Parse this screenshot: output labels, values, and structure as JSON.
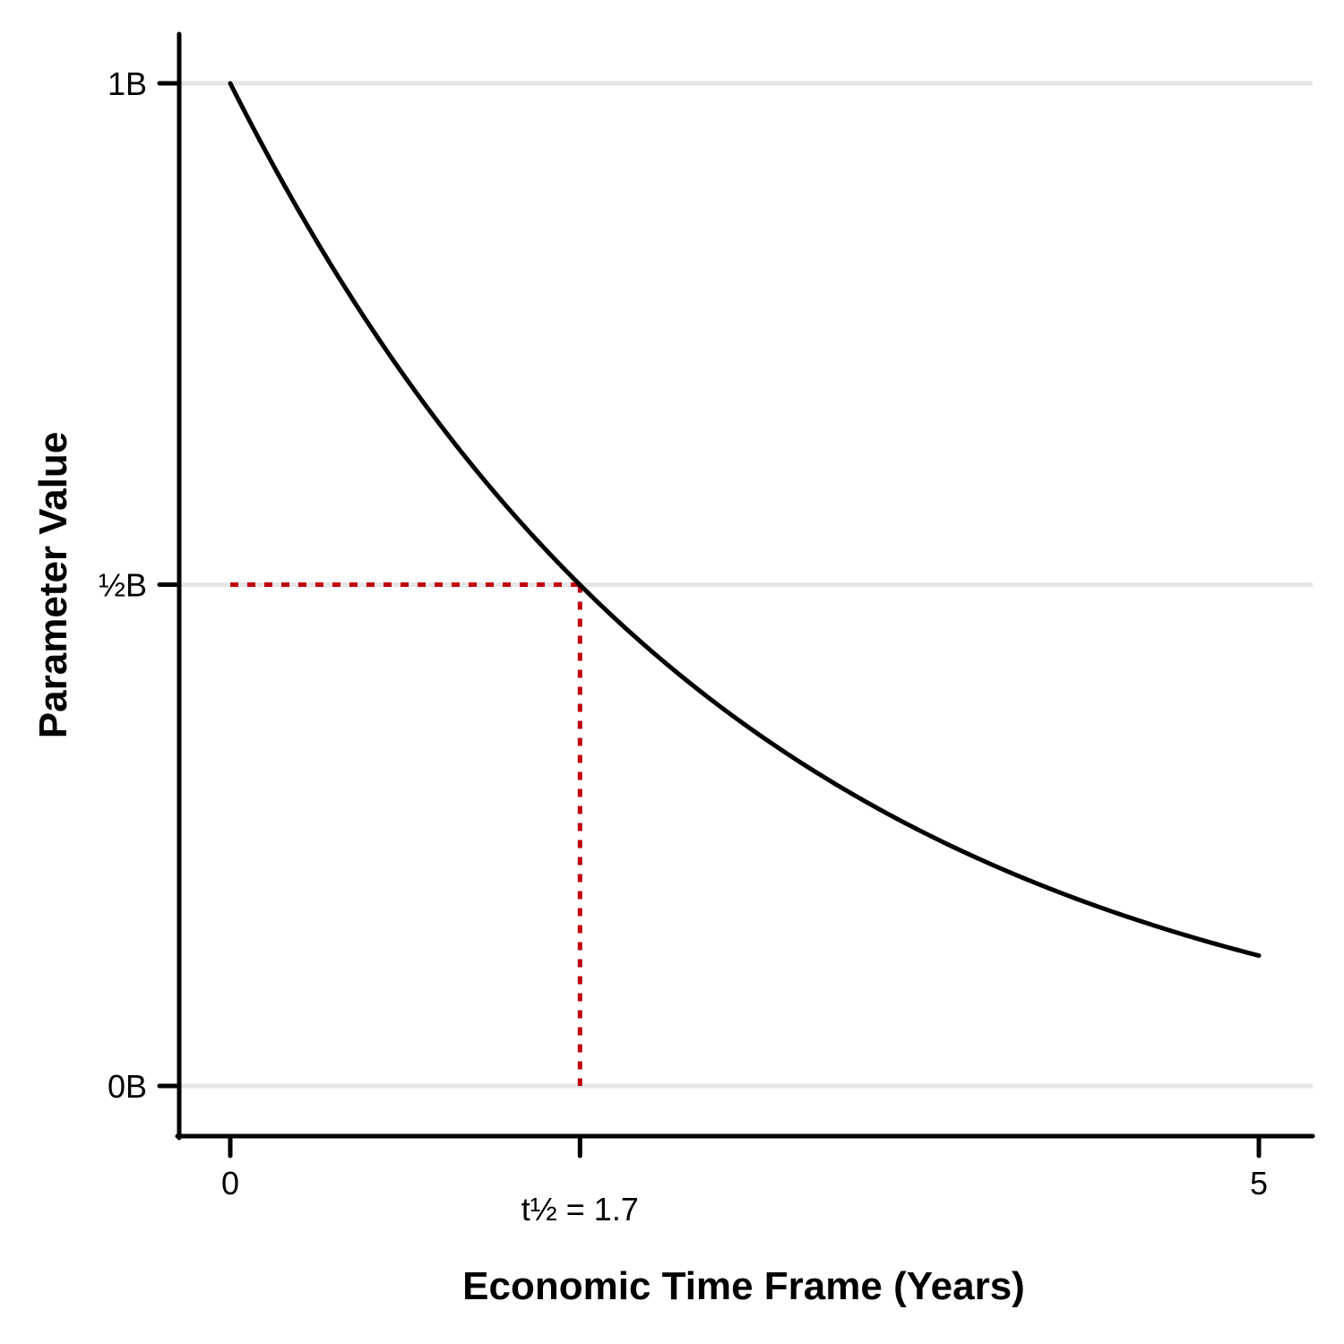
{
  "chart_data": {
    "type": "line",
    "title": "",
    "xlabel": "Economic Time Frame (Years)",
    "ylabel": "Parameter Value",
    "xlim": [
      -0.25,
      5.25
    ],
    "ylim": [
      -0.1,
      1.1
    ],
    "x_ticks": [
      {
        "value": 0,
        "label": "0"
      },
      {
        "value": 1.7,
        "label": "t½ = 1.7"
      },
      {
        "value": 5,
        "label": "5"
      }
    ],
    "y_ticks": [
      {
        "value": 0,
        "label": "0B"
      },
      {
        "value": 0.5,
        "label": "½B"
      },
      {
        "value": 1,
        "label": "1B"
      }
    ],
    "grid": "horizontal",
    "series": [
      {
        "x": [
          0,
          0.25,
          0.5,
          0.75,
          1,
          1.25,
          1.5,
          1.75,
          2,
          2.25,
          2.5,
          2.75,
          3,
          3.25,
          3.5,
          3.75,
          4,
          4.25,
          4.5,
          4.75,
          5
        ],
        "y": [
          1,
          0.903,
          0.816,
          0.736,
          0.665,
          0.601,
          0.542,
          0.49,
          0.442,
          0.4,
          0.361,
          0.326,
          0.294,
          0.266,
          0.24,
          0.217,
          0.196,
          0.177,
          0.16,
          0.144,
          0.13
        ],
        "color": "#000000"
      }
    ],
    "annotations": [
      {
        "type": "half-life-guide",
        "x": 1.7,
        "y": 0.5,
        "color": "#c0000e"
      }
    ],
    "grid_color": "#e6e6e6",
    "axis_color": "#000000"
  }
}
